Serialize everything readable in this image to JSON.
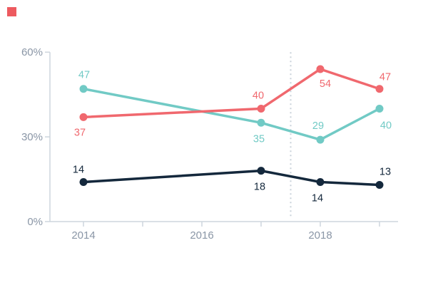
{
  "brand": {
    "logo_color": "#ED5A5F"
  },
  "colors": {
    "axis_line": "#CDD5DD",
    "axis_text": "#8A96A6",
    "dotted_line": "#C9D2DA",
    "background": "#FFFFFF"
  },
  "chart_data": {
    "type": "line",
    "title": "",
    "xlabel": "",
    "ylabel": "",
    "grid": false,
    "legend": false,
    "x": [
      2014,
      2017,
      2018,
      2019
    ],
    "series": [
      {
        "name": "coral-series",
        "color": "#F0686E",
        "values": [
          37,
          40,
          54,
          47
        ]
      },
      {
        "name": "teal-series",
        "color": "#71CAC5",
        "values": [
          47,
          35,
          29,
          40
        ]
      },
      {
        "name": "navy-series",
        "color": "#14283C",
        "values": [
          14,
          18,
          14,
          13
        ]
      }
    ],
    "point_labels_visible": true,
    "y_axis": {
      "range": [
        0,
        60
      ],
      "ticks": [
        0,
        30,
        60
      ],
      "tick_labels": [
        "0%",
        "30%",
        "60%"
      ]
    },
    "x_axis": {
      "range": [
        2014,
        2019
      ],
      "ticks": [
        2014,
        2015,
        2016,
        2017,
        2018,
        2019
      ],
      "labeled_ticks": [
        2014,
        2016,
        2018
      ],
      "tick_labels": [
        "2014",
        "2016",
        "2018"
      ]
    },
    "annotations": {
      "dotted_vline_x": 2017.5
    }
  }
}
